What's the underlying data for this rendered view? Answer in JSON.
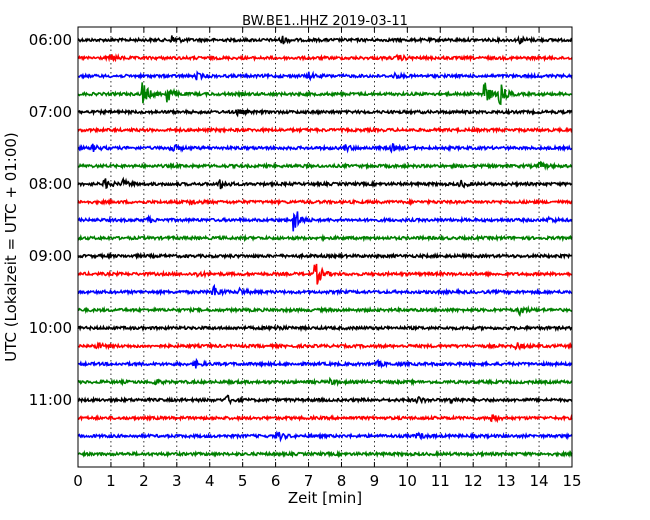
{
  "chart_data": {
    "type": "line",
    "title": "BW.BE1..HHZ 2019-03-11",
    "xlabel": "Zeit  [min]",
    "ylabel": "UTC (Lokalzeit = UTC + 01:00)",
    "xlim": [
      0,
      15
    ],
    "x_ticks": [
      0,
      1,
      2,
      3,
      4,
      5,
      6,
      7,
      8,
      9,
      10,
      11,
      12,
      13,
      14,
      15
    ],
    "grid": "vertical-dotted",
    "trace_interval_minutes": 15,
    "y_tick_labels": [
      "06:00",
      "07:00",
      "08:00",
      "09:00",
      "10:00",
      "11:00"
    ],
    "color_cycle": [
      "#000000",
      "#ff0000",
      "#0000ff",
      "#008000"
    ],
    "traces": [
      {
        "start": "06:00",
        "color": "#000000",
        "events": [
          {
            "t": 2.85,
            "amp": 0.3
          },
          {
            "t": 6.15,
            "amp": 0.3
          },
          {
            "t": 13.4,
            "amp": 0.2
          }
        ]
      },
      {
        "start": "06:15",
        "color": "#ff0000",
        "events": [
          {
            "t": 1.0,
            "amp": 0.2
          },
          {
            "t": 9.7,
            "amp": 0.2
          }
        ]
      },
      {
        "start": "06:30",
        "color": "#0000ff",
        "events": [
          {
            "t": 3.6,
            "amp": 0.2
          },
          {
            "t": 7.0,
            "amp": 0.2
          },
          {
            "t": 9.6,
            "amp": 0.15
          }
        ]
      },
      {
        "start": "06:45",
        "color": "#008000",
        "events": [
          {
            "t": 1.95,
            "amp": 0.8
          },
          {
            "t": 2.7,
            "amp": 0.6
          },
          {
            "t": 12.3,
            "amp": 1.0
          },
          {
            "t": 12.8,
            "amp": 0.7
          }
        ]
      },
      {
        "start": "07:00",
        "color": "#000000",
        "events": [
          {
            "t": 4.8,
            "amp": 0.2
          }
        ]
      },
      {
        "start": "07:15",
        "color": "#ff0000",
        "events": []
      },
      {
        "start": "07:30",
        "color": "#0000ff",
        "events": [
          {
            "t": 0.45,
            "amp": 0.2
          },
          {
            "t": 2.8,
            "amp": 0.3
          },
          {
            "t": 8.1,
            "amp": 0.2
          },
          {
            "t": 9.5,
            "amp": 0.25
          }
        ]
      },
      {
        "start": "07:45",
        "color": "#008000",
        "events": [
          {
            "t": 14.0,
            "amp": 0.2
          }
        ]
      },
      {
        "start": "08:00",
        "color": "#000000",
        "events": [
          {
            "t": 0.8,
            "amp": 0.35
          },
          {
            "t": 1.35,
            "amp": 0.25
          },
          {
            "t": 4.3,
            "amp": 0.35
          },
          {
            "t": 11.6,
            "amp": 0.25
          }
        ]
      },
      {
        "start": "08:15",
        "color": "#ff0000",
        "events": [
          {
            "t": 3.4,
            "amp": 0.2
          }
        ]
      },
      {
        "start": "08:30",
        "color": "#0000ff",
        "events": [
          {
            "t": 6.55,
            "amp": 1.0
          },
          {
            "t": 2.1,
            "amp": 0.15
          },
          {
            "t": 14.3,
            "amp": 0.15
          }
        ]
      },
      {
        "start": "08:45",
        "color": "#008000",
        "events": []
      },
      {
        "start": "09:00",
        "color": "#000000",
        "events": []
      },
      {
        "start": "09:15",
        "color": "#ff0000",
        "events": [
          {
            "t": 7.2,
            "amp": 0.9
          },
          {
            "t": 3.6,
            "amp": 0.15
          }
        ]
      },
      {
        "start": "09:30",
        "color": "#0000ff",
        "events": [
          {
            "t": 4.1,
            "amp": 0.45
          },
          {
            "t": 4.9,
            "amp": 0.2
          }
        ]
      },
      {
        "start": "09:45",
        "color": "#008000",
        "events": [
          {
            "t": 13.4,
            "amp": 0.3
          }
        ]
      },
      {
        "start": "10:00",
        "color": "#000000",
        "events": [
          {
            "t": 6.0,
            "amp": 0.15
          }
        ]
      },
      {
        "start": "10:15",
        "color": "#ff0000",
        "events": [
          {
            "t": 0.55,
            "amp": 0.2
          },
          {
            "t": 13.3,
            "amp": 0.2
          }
        ]
      },
      {
        "start": "10:30",
        "color": "#0000ff",
        "events": [
          {
            "t": 3.55,
            "amp": 0.25
          },
          {
            "t": 9.1,
            "amp": 0.15
          }
        ]
      },
      {
        "start": "10:45",
        "color": "#008000",
        "events": [
          {
            "t": 2.3,
            "amp": 0.15
          },
          {
            "t": 7.65,
            "amp": 0.15
          }
        ]
      },
      {
        "start": "11:00",
        "color": "#000000",
        "events": [
          {
            "t": 4.5,
            "amp": 0.3
          },
          {
            "t": 10.3,
            "amp": 0.2
          },
          {
            "t": 11.3,
            "amp": 0.2
          }
        ]
      },
      {
        "start": "11:15",
        "color": "#ff0000",
        "events": [
          {
            "t": 12.55,
            "amp": 0.3
          }
        ]
      },
      {
        "start": "11:30",
        "color": "#0000ff",
        "events": [
          {
            "t": 6.05,
            "amp": 0.3
          },
          {
            "t": 10.3,
            "amp": 0.2
          }
        ]
      },
      {
        "start": "11:45",
        "color": "#008000",
        "events": []
      }
    ]
  }
}
